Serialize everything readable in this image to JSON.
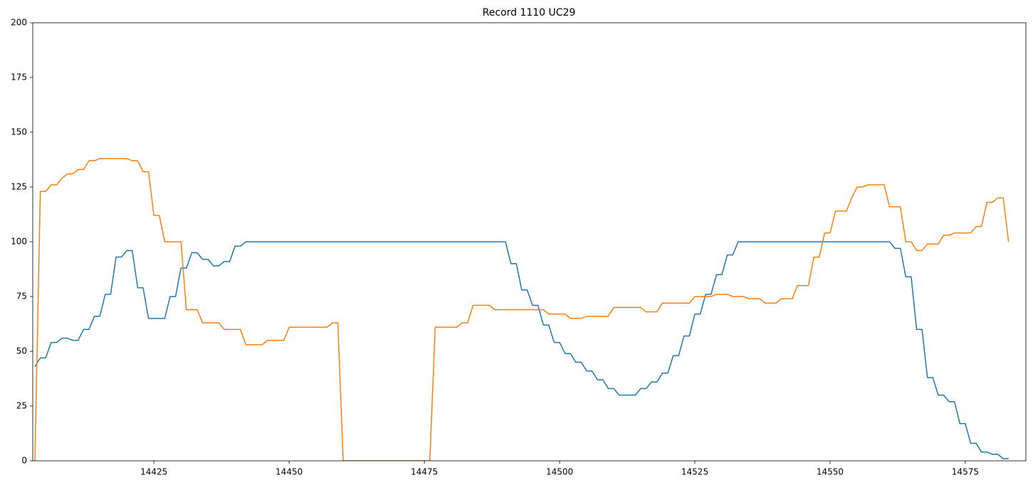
{
  "chart_data": {
    "type": "line",
    "title": "Record 1110 UC29",
    "x": [
      14403,
      14404,
      14405,
      14406,
      14407,
      14408,
      14409,
      14410,
      14411,
      14412,
      14413,
      14414,
      14415,
      14416,
      14417,
      14418,
      14419,
      14420,
      14421,
      14422,
      14423,
      14424,
      14425,
      14426,
      14427,
      14428,
      14429,
      14430,
      14431,
      14432,
      14433,
      14434,
      14435,
      14436,
      14437,
      14438,
      14439,
      14440,
      14441,
      14442,
      14443,
      14444,
      14445,
      14446,
      14447,
      14448,
      14449,
      14450,
      14451,
      14452,
      14453,
      14454,
      14455,
      14456,
      14457,
      14458,
      14459,
      14460,
      14461,
      14462,
      14463,
      14464,
      14465,
      14466,
      14467,
      14468,
      14469,
      14470,
      14471,
      14472,
      14473,
      14474,
      14475,
      14476,
      14477,
      14478,
      14479,
      14480,
      14481,
      14482,
      14483,
      14484,
      14485,
      14486,
      14487,
      14488,
      14489,
      14490,
      14491,
      14492,
      14493,
      14494,
      14495,
      14496,
      14497,
      14498,
      14499,
      14500,
      14501,
      14502,
      14503,
      14504,
      14505,
      14506,
      14507,
      14508,
      14509,
      14510,
      14511,
      14512,
      14513,
      14514,
      14515,
      14516,
      14517,
      14518,
      14519,
      14520,
      14521,
      14522,
      14523,
      14524,
      14525,
      14526,
      14527,
      14528,
      14529,
      14530,
      14531,
      14532,
      14533,
      14534,
      14535,
      14536,
      14537,
      14538,
      14539,
      14540,
      14541,
      14542,
      14543,
      14544,
      14545,
      14546,
      14547,
      14548,
      14549,
      14550,
      14551,
      14552,
      14553,
      14554,
      14555,
      14556,
      14557,
      14558,
      14559,
      14560,
      14561,
      14562,
      14563,
      14564,
      14565,
      14566,
      14567,
      14568,
      14569,
      14570,
      14571,
      14572,
      14573,
      14574,
      14575,
      14576,
      14577,
      14578,
      14579,
      14580,
      14581,
      14582,
      14583
    ],
    "series": [
      {
        "color": "#1f77b4",
        "values": [
          43,
          47,
          47,
          54,
          54,
          56,
          56,
          55,
          55,
          60,
          60,
          66,
          66,
          76,
          76,
          93,
          93,
          96,
          96,
          79,
          79,
          65,
          65,
          65,
          65,
          75,
          75,
          88,
          88,
          95,
          95,
          92,
          92,
          89,
          89,
          91,
          91,
          98,
          98,
          100,
          100,
          100,
          100,
          100,
          100,
          100,
          100,
          100,
          100,
          100,
          100,
          100,
          100,
          100,
          100,
          100,
          100,
          100,
          100,
          100,
          100,
          100,
          100,
          100,
          100,
          100,
          100,
          100,
          100,
          100,
          100,
          100,
          100,
          100,
          100,
          100,
          100,
          100,
          100,
          100,
          100,
          100,
          100,
          100,
          100,
          100,
          100,
          100,
          90,
          90,
          78,
          78,
          71,
          71,
          62,
          62,
          54,
          54,
          49,
          49,
          45,
          45,
          41,
          41,
          37,
          37,
          33,
          33,
          30,
          30,
          30,
          30,
          33,
          33,
          36,
          36,
          40,
          40,
          48,
          48,
          57,
          57,
          67,
          67,
          76,
          76,
          85,
          85,
          94,
          94,
          100,
          100,
          100,
          100,
          100,
          100,
          100,
          100,
          100,
          100,
          100,
          100,
          100,
          100,
          100,
          100,
          100,
          100,
          100,
          100,
          100,
          100,
          100,
          100,
          100,
          100,
          100,
          100,
          100,
          97,
          97,
          84,
          84,
          60,
          60,
          38,
          38,
          30,
          30,
          27,
          27,
          17,
          17,
          8,
          8,
          4,
          4,
          3,
          3,
          1,
          1
        ]
      },
      {
        "color": "#ff7f0e",
        "values": [
          0,
          123,
          123,
          126,
          126,
          129,
          131,
          131,
          133,
          133,
          137,
          137,
          138,
          138,
          138,
          138,
          138,
          138,
          137,
          137,
          132,
          132,
          112,
          112,
          100,
          100,
          100,
          100,
          69,
          69,
          69,
          63,
          63,
          63,
          63,
          60,
          60,
          60,
          60,
          53,
          53,
          53,
          53,
          55,
          55,
          55,
          55,
          61,
          61,
          61,
          61,
          61,
          61,
          61,
          61,
          63,
          63,
          0,
          0,
          0,
          0,
          0,
          0,
          0,
          0,
          0,
          0,
          0,
          0,
          0,
          0,
          0,
          0,
          0,
          61,
          61,
          61,
          61,
          61,
          63,
          63,
          71,
          71,
          71,
          71,
          69,
          69,
          69,
          69,
          69,
          69,
          69,
          69,
          69,
          69,
          67,
          67,
          67,
          67,
          65,
          65,
          65,
          66,
          66,
          66,
          66,
          66,
          70,
          70,
          70,
          70,
          70,
          70,
          68,
          68,
          68,
          72,
          72,
          72,
          72,
          72,
          72,
          75,
          75,
          75,
          75,
          76,
          76,
          76,
          75,
          75,
          75,
          74,
          74,
          74,
          72,
          72,
          72,
          74,
          74,
          74,
          80,
          80,
          80,
          93,
          93,
          104,
          104,
          114,
          114,
          114,
          120,
          125,
          125,
          126,
          126,
          126,
          126,
          116,
          116,
          116,
          100,
          100,
          96,
          96,
          99,
          99,
          99,
          103,
          103,
          104,
          104,
          104,
          104,
          107,
          107,
          118,
          118,
          120,
          120,
          100
        ]
      }
    ],
    "xlim": [
      14402.6,
      14586.2
    ],
    "ylim": [
      0,
      200
    ],
    "xticks": [
      14425,
      14450,
      14475,
      14500,
      14525,
      14550,
      14575
    ],
    "yticks": [
      0,
      25,
      50,
      75,
      100,
      125,
      150,
      175,
      200
    ]
  }
}
